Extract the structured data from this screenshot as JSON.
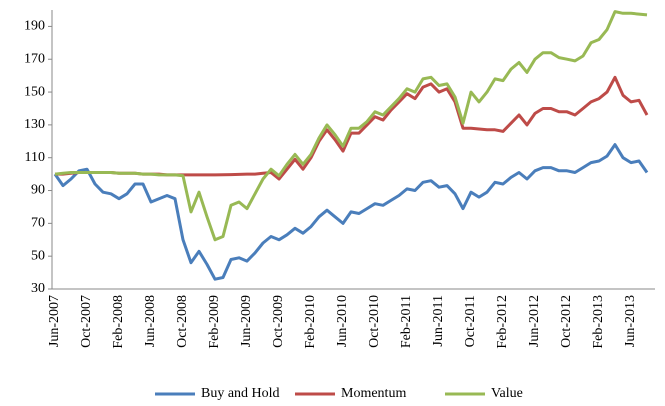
{
  "chart_data": {
    "type": "line",
    "categories": [
      "Jun-2007",
      null,
      null,
      null,
      "Oct-2007",
      null,
      null,
      null,
      "Feb-2008",
      null,
      null,
      null,
      "Jun-2008",
      null,
      null,
      null,
      "Oct-2008",
      null,
      null,
      null,
      "Feb-2009",
      null,
      null,
      null,
      "Jun-2009",
      null,
      null,
      null,
      "Oct-2009",
      null,
      null,
      null,
      "Feb-2010",
      null,
      null,
      null,
      "Jun-2010",
      null,
      null,
      null,
      "Oct-2010",
      null,
      null,
      null,
      "Feb-2011",
      null,
      null,
      null,
      "Jun-2011",
      null,
      null,
      null,
      "Oct-2011",
      null,
      null,
      null,
      "Feb-2012",
      null,
      null,
      null,
      "Jun-2012",
      null,
      null,
      null,
      "Oct-2012",
      null,
      null,
      null,
      "Feb-2013",
      null,
      null,
      null,
      "Jun-2013",
      null,
      null
    ],
    "series": [
      {
        "name": "Buy and Hold",
        "color": "#4a7ebb",
        "values": [
          100,
          93,
          97,
          102,
          103,
          94,
          89,
          88,
          85,
          88,
          94,
          94,
          83,
          85,
          87,
          85,
          60,
          46,
          53,
          45,
          36,
          37,
          48,
          49,
          47,
          52,
          58,
          62,
          60,
          63,
          67,
          64,
          68,
          74,
          78,
          74,
          70,
          77,
          76,
          79,
          82,
          81,
          84,
          87,
          91,
          90,
          95,
          96,
          92,
          93,
          88,
          79,
          89,
          86,
          89,
          95,
          94,
          98,
          101,
          97,
          102,
          104,
          104,
          102,
          102,
          101,
          104,
          107,
          108,
          111,
          118,
          110,
          107,
          108,
          101
        ]
      },
      {
        "name": "Momentum",
        "color": "#be4b48",
        "values": [
          100,
          100,
          100.5,
          101,
          101,
          101,
          101,
          101,
          100.5,
          100.5,
          100.5,
          100,
          100,
          100,
          99.5,
          99.5,
          99.5,
          99.5,
          99.5,
          99.5,
          99.5,
          99.6,
          99.7,
          99.8,
          100,
          100,
          100.5,
          101,
          97,
          103,
          109,
          103,
          110,
          120,
          127,
          121,
          114,
          125,
          125,
          130,
          135,
          133,
          139,
          144,
          149,
          146,
          153,
          155,
          150,
          152,
          144,
          128,
          128,
          127.5,
          127,
          127,
          126,
          131,
          136,
          130,
          137,
          140,
          140,
          138,
          138,
          136,
          140,
          144,
          146,
          150,
          159,
          148,
          144,
          145,
          136
        ]
      },
      {
        "name": "Value",
        "color": "#98b954",
        "values": [
          100,
          100.5,
          101,
          101,
          101,
          101,
          101,
          101,
          100.5,
          100.5,
          100.5,
          100,
          100,
          99.5,
          99.5,
          99.5,
          99,
          77,
          89,
          74,
          60,
          62,
          81,
          83,
          79,
          88,
          97,
          103,
          99,
          106,
          112,
          106,
          112,
          122,
          130,
          124,
          117,
          128,
          128,
          132,
          138,
          136,
          141,
          146,
          152,
          150,
          158,
          159,
          154,
          155,
          147,
          131,
          150,
          144,
          150,
          158,
          157,
          164,
          168,
          162,
          170,
          174,
          174,
          171,
          170,
          169,
          172,
          180,
          182,
          188,
          199,
          198,
          198,
          197.5,
          197
        ]
      }
    ],
    "ylim": [
      30,
      200
    ],
    "yticks": [
      30,
      50,
      70,
      90,
      110,
      130,
      150,
      170,
      190
    ],
    "grid": false,
    "legend": "bottom"
  }
}
